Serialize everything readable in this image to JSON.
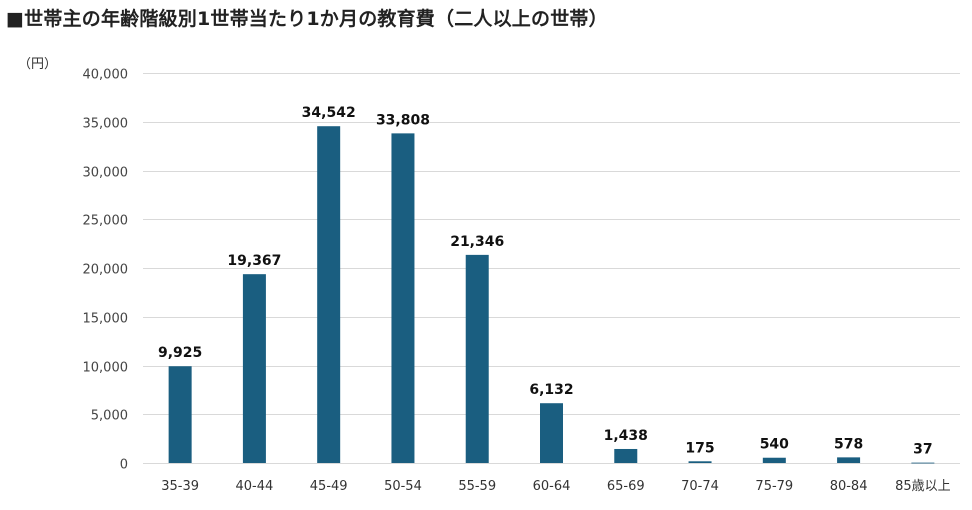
{
  "title": "■世帯主の年齢階級別1世帯当たり1か月の教育費（二人以上の世帯）",
  "unit_label": "（円）",
  "colors": {
    "bar": "#1a5e80",
    "grid": "#d9d9d9"
  },
  "chart_data": {
    "type": "bar",
    "title": "■世帯主の年齢階級別1世帯当たり1か月の教育費（二人以上の世帯）",
    "ylabel": "（円）",
    "xlabel": "",
    "categories": [
      "35-39",
      "40-44",
      "45-49",
      "50-54",
      "55-59",
      "60-64",
      "65-69",
      "70-74",
      "75-79",
      "80-84",
      "85歳以上"
    ],
    "values": [
      9925,
      19367,
      34542,
      33808,
      21346,
      6132,
      1438,
      175,
      540,
      578,
      37
    ],
    "value_labels": [
      "9,925",
      "19,367",
      "34,542",
      "33,808",
      "21,346",
      "6,132",
      "1,438",
      "175",
      "540",
      "578",
      "37"
    ],
    "ylim": [
      0,
      40000
    ],
    "yticks": [
      0,
      5000,
      10000,
      15000,
      20000,
      25000,
      30000,
      35000,
      40000
    ],
    "ytick_labels": [
      "0",
      "5,000",
      "10,000",
      "15,000",
      "20,000",
      "25,000",
      "30,000",
      "35,000",
      "40,000"
    ],
    "grid": true,
    "legend": "none"
  }
}
